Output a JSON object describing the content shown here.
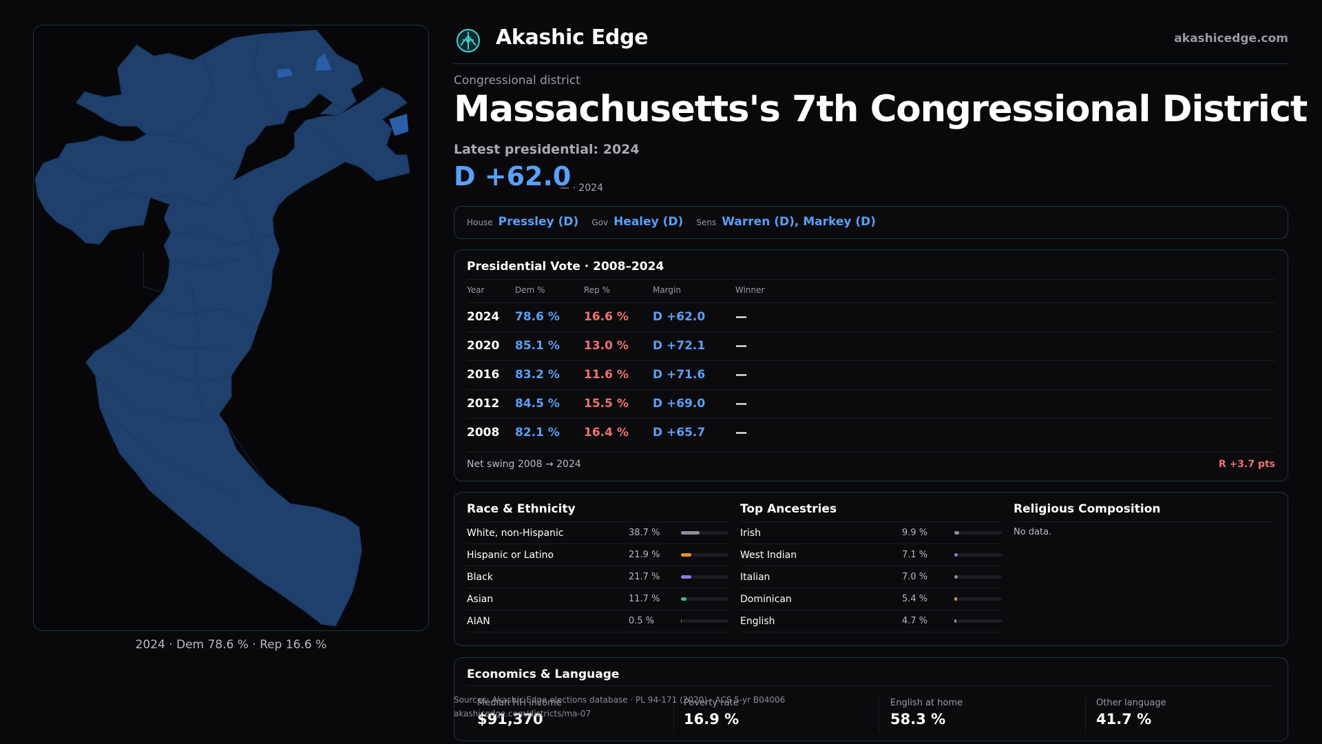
{
  "brand": {
    "name": "Akashic Edge",
    "site": "akashicedge.com"
  },
  "district": {
    "kind": "Congressional district",
    "title": "Massachusetts's 7th Congressional District",
    "latest_label": "Latest presidential: 2024",
    "margin": "D +62.0",
    "margin_sub": "— · 2024"
  },
  "officials": [
    {
      "label": "House",
      "value": "Pressley (D)"
    },
    {
      "label": "Gov",
      "value": "Healey (D)"
    },
    {
      "label": "Sens",
      "value": "Warren (D), Markey (D)"
    }
  ],
  "presidential": {
    "title": "Presidential Vote · 2008–2024",
    "columns": [
      "Year",
      "Dem %",
      "Rep %",
      "Margin",
      "Winner"
    ],
    "rows": [
      {
        "year": "2024",
        "dem": "78.6 %",
        "rep": "16.6 %",
        "margin": "D +62.0",
        "winner": "—"
      },
      {
        "year": "2020",
        "dem": "85.1 %",
        "rep": "13.0 %",
        "margin": "D +72.1",
        "winner": "—"
      },
      {
        "year": "2016",
        "dem": "83.2 %",
        "rep": "11.6 %",
        "margin": "D +71.6",
        "winner": "—"
      },
      {
        "year": "2012",
        "dem": "84.5 %",
        "rep": "15.5 %",
        "margin": "D +69.0",
        "winner": "—"
      },
      {
        "year": "2008",
        "dem": "82.1 %",
        "rep": "16.4 %",
        "margin": "D +65.7",
        "winner": "—"
      }
    ],
    "net_swing_label": "Net swing 2008 → 2024",
    "net_swing_value": "R +3.7 pts"
  },
  "race": {
    "title": "Race & Ethnicity",
    "items": [
      {
        "label": "White, non-Hispanic",
        "value": "38.7 %",
        "pct": 38.7,
        "color": "#8b8f9c"
      },
      {
        "label": "Hispanic or Latino",
        "value": "21.9 %",
        "pct": 21.9,
        "color": "#e3932a"
      },
      {
        "label": "Black",
        "value": "21.7 %",
        "pct": 21.7,
        "color": "#8f7ce0"
      },
      {
        "label": "Asian",
        "value": "11.7 %",
        "pct": 11.7,
        "color": "#2fbf86"
      },
      {
        "label": "AIAN",
        "value": "0.5 %",
        "pct": 0.5,
        "color": "#c0504d"
      }
    ]
  },
  "ancestry": {
    "title": "Top Ancestries",
    "items": [
      {
        "label": "Irish",
        "value": "9.9 %",
        "pct": 9.9,
        "color": "#8b8f9c"
      },
      {
        "label": "West Indian",
        "value": "7.1 %",
        "pct": 7.1,
        "color": "#8f7ce0"
      },
      {
        "label": "Italian",
        "value": "7.0 %",
        "pct": 7.0,
        "color": "#8b8f9c"
      },
      {
        "label": "Dominican",
        "value": "5.4 %",
        "pct": 5.4,
        "color": "#e3932a"
      },
      {
        "label": "English",
        "value": "4.7 %",
        "pct": 4.7,
        "color": "#8b8f9c"
      }
    ]
  },
  "religion": {
    "title": "Religious Composition",
    "empty": "No data."
  },
  "economics": {
    "title": "Economics & Language",
    "items": [
      {
        "label": "Median HH income",
        "value": "$91,370"
      },
      {
        "label": "Poverty rate",
        "value": "16.9 %"
      },
      {
        "label": "English at home",
        "value": "58.3 %"
      },
      {
        "label": "Other language",
        "value": "41.7 %"
      }
    ]
  },
  "sources": {
    "line1": "Sources: Akashic Edge elections database · PL 94-171 (2020) · ACS 5-yr B04006",
    "line2": "akashicedge.com/districts/ma-07"
  },
  "map": {
    "caption": "2024 · Dem 78.6 % · Rep 16.6 %",
    "fill_color": "#1f3f6c",
    "highlight_color": "#2b5ea8"
  }
}
